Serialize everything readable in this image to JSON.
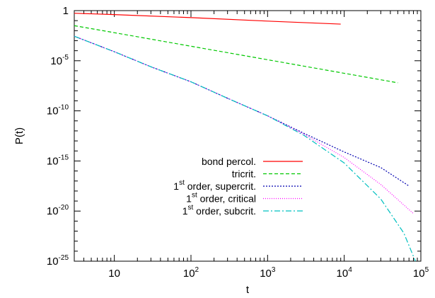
{
  "chart_data": {
    "type": "line",
    "title": "",
    "xlabel": "t",
    "ylabel": "P(t)",
    "xscale": "log",
    "yscale": "log",
    "xlim": [
      3,
      100000
    ],
    "ylim": [
      1e-25,
      1
    ],
    "grid": false,
    "legend_position": "bottom-left",
    "x_ticks": [
      {
        "value": 10,
        "base": "10",
        "exp": ""
      },
      {
        "value": 100,
        "base": "10",
        "exp": "2"
      },
      {
        "value": 1000,
        "base": "10",
        "exp": "3"
      },
      {
        "value": 10000,
        "base": "10",
        "exp": "4"
      },
      {
        "value": 100000,
        "base": "10",
        "exp": "5"
      }
    ],
    "y_ticks": [
      {
        "value": 1,
        "base": "1",
        "exp": ""
      },
      {
        "value": 1e-05,
        "base": "10",
        "exp": "-5"
      },
      {
        "value": 1e-10,
        "base": "10",
        "exp": "-10"
      },
      {
        "value": 1e-15,
        "base": "10",
        "exp": "-15"
      },
      {
        "value": 1e-20,
        "base": "10",
        "exp": "-20"
      },
      {
        "value": 1e-25,
        "base": "10",
        "exp": "-25"
      }
    ],
    "series": [
      {
        "name": "bond percol.",
        "sup": "",
        "name_rest": "",
        "color": "#ff0000",
        "dash": "",
        "points": [
          [
            3,
            0.55
          ],
          [
            10,
            0.4
          ],
          [
            100,
            0.2
          ],
          [
            1000,
            0.09
          ],
          [
            9000,
            0.045
          ]
        ]
      },
      {
        "name": "tricrit.",
        "sup": "",
        "name_rest": "",
        "color": "#00c800",
        "dash": "5,3",
        "points": [
          [
            3,
            0.0316
          ],
          [
            10,
            0.0063
          ],
          [
            100,
            0.00028
          ],
          [
            1000,
            1.26e-05
          ],
          [
            10000,
            5.6e-07
          ],
          [
            50000,
            6.3e-08
          ]
        ]
      },
      {
        "name": "1",
        "sup": "st",
        "name_rest": " order, supercrit.",
        "color": "#0000b0",
        "dash": "2,2",
        "points": [
          [
            3,
            0.0028
          ],
          [
            10,
            7.9e-05
          ],
          [
            30,
            2.5e-06
          ],
          [
            100,
            7.9e-08
          ],
          [
            300,
            1.8e-09
          ],
          [
            1000,
            3.2e-11
          ],
          [
            3000,
            5.6e-13
          ],
          [
            10000,
            7.9e-15
          ],
          [
            30000,
            2.2e-16
          ],
          [
            70000,
            3.2e-18
          ]
        ]
      },
      {
        "name": "1",
        "sup": "st",
        "name_rest": " order, critical",
        "color": "#ff00ff",
        "dash": "1,2",
        "points": [
          [
            3,
            0.0028
          ],
          [
            10,
            7.9e-05
          ],
          [
            30,
            2.5e-06
          ],
          [
            100,
            7.9e-08
          ],
          [
            300,
            1.8e-09
          ],
          [
            1000,
            3.2e-11
          ],
          [
            3000,
            4.5e-13
          ],
          [
            10000,
            2.2e-15
          ],
          [
            30000,
            4.5e-18
          ],
          [
            80000,
            5.6e-21
          ]
        ]
      },
      {
        "name": "1",
        "sup": "st",
        "name_rest": " order, subcrit.",
        "color": "#00c0c0",
        "dash": "8,3,2,3",
        "points": [
          [
            3,
            0.0028
          ],
          [
            10,
            7.9e-05
          ],
          [
            30,
            2.5e-06
          ],
          [
            100,
            7.9e-08
          ],
          [
            300,
            1.8e-09
          ],
          [
            1000,
            3.2e-11
          ],
          [
            3000,
            3.5e-13
          ],
          [
            10000,
            6.3e-16
          ],
          [
            30000,
            1.6e-19
          ],
          [
            60000,
            6.3e-23
          ],
          [
            85000,
            1e-25
          ]
        ]
      }
    ]
  }
}
